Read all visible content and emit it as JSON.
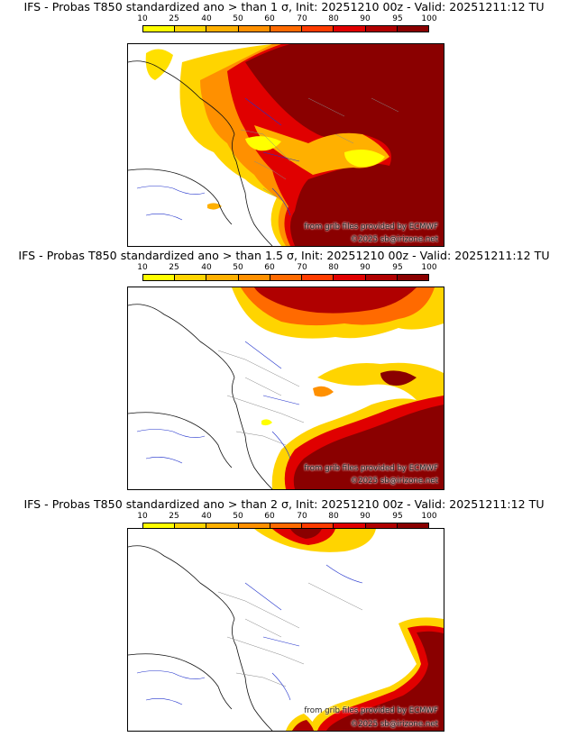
{
  "legend": {
    "ticks": [
      "10",
      "25",
      "40",
      "50",
      "60",
      "70",
      "80",
      "90",
      "95",
      "100"
    ],
    "colors": [
      "#ffff00",
      "#ffd400",
      "#ffb000",
      "#ff9000",
      "#ff6a00",
      "#ff3c00",
      "#e00000",
      "#b00000",
      "#8a0000"
    ]
  },
  "panels": [
    {
      "title": "IFS - Probas T850  standardized ano > than 1 σ, Init: 20251210 00z - Valid: 20251211:12 TU",
      "credit_source": "from grib files provided by ECMWF",
      "credit_copyright": "©2025 sb@irizone.net",
      "threshold_sigma": 1
    },
    {
      "title": "IFS - Probas T850  standardized ano > than 1.5 σ, Init: 20251210 00z - Valid: 20251211:12 TU",
      "credit_source": "from grib files provided by ECMWF",
      "credit_copyright": "©2025 sb@irizone.net",
      "threshold_sigma": 1.5
    },
    {
      "title": "IFS - Probas T850  standardized ano > than 2 σ, Init: 20251210 00z - Valid: 20251211:12 TU",
      "credit_source": "from grib files provided by ECMWF",
      "credit_copyright": "©2025 sb@irizone.net",
      "threshold_sigma": 2
    }
  ]
}
